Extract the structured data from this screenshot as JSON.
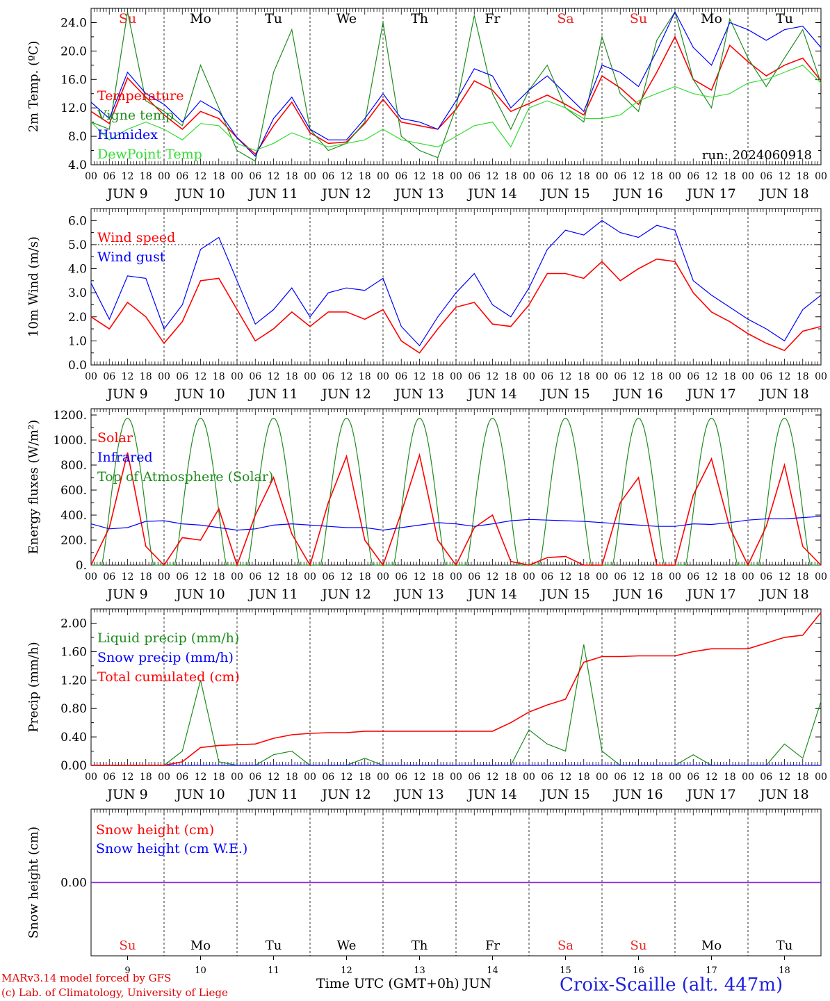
{
  "colors": {
    "red": "#ff0000",
    "green": "#1e8c1e",
    "blue": "#0000ff",
    "lightgreen": "#33dd33",
    "purple": "#8a2be2",
    "sunday": "#ee2222",
    "saturday": "#ee2222"
  },
  "day_names": [
    "Su",
    "Mo",
    "Tu",
    "We",
    "Th",
    "Fr",
    "Sa",
    "Su",
    "Mo",
    "Tu"
  ],
  "weekend_days": [
    0,
    6,
    7
  ],
  "date_labels": [
    "JUN  9",
    "JUN 10",
    "JUN 11",
    "JUN 12",
    "JUN 13",
    "JUN 14",
    "JUN 15",
    "JUN 16",
    "JUN 17",
    "JUN 18"
  ],
  "hour_labels": [
    "00",
    "06",
    "12",
    "18"
  ],
  "bottom_day_numbers": [
    "9",
    "10",
    "11",
    "12",
    "13",
    "14",
    "15",
    "16",
    "17",
    "18"
  ],
  "footer": {
    "model": "MARv3.14 model forced by GFS",
    "lab": "(c) Lab. of Climatology, University of Liege",
    "axis_title": "Time UTC (GMT+0h) JUN",
    "station": "Croix-Scaille (alt. 447m)"
  },
  "chart_data": [
    {
      "id": "temp",
      "type": "line",
      "ylabel": "2m Temp. (ºC)",
      "ylim": [
        4.0,
        26.0
      ],
      "yticks": [
        "4.0",
        "8.0",
        "12.0",
        "16.0",
        "20.0",
        "24.0"
      ],
      "ytick_values": [
        4,
        8,
        12,
        16,
        20,
        24
      ],
      "annotation": "run: 2024060918",
      "x_hours": [
        0,
        6,
        12,
        18,
        24,
        30,
        36,
        42,
        48,
        54,
        60,
        66,
        72,
        78,
        84,
        90,
        96,
        102,
        108,
        114,
        120,
        126,
        132,
        138,
        144,
        150,
        156,
        162,
        168,
        174,
        180,
        186,
        192,
        198,
        204,
        210,
        216,
        222,
        228,
        234,
        240
      ],
      "series": [
        {
          "name": "Temperature",
          "color": "red",
          "values": [
            11.5,
            9.8,
            16.2,
            13.5,
            11.0,
            9.0,
            11.5,
            10.5,
            7.8,
            5.5,
            9.5,
            12.8,
            8.5,
            7.0,
            7.2,
            9.8,
            13.2,
            10.0,
            9.5,
            9.0,
            11.8,
            15.8,
            14.5,
            11.5,
            12.6,
            13.8,
            12.5,
            11.0,
            16.5,
            14.8,
            12.5,
            17.0,
            22.0,
            16.0,
            14.5,
            20.8,
            18.5,
            16.5,
            18.0,
            19.0,
            15.8
          ]
        },
        {
          "name": "Vigne temp",
          "color": "green",
          "values": [
            10.0,
            9.0,
            25.5,
            13.0,
            11.5,
            9.5,
            18.0,
            12.0,
            6.0,
            4.5,
            17.0,
            23.0,
            9.0,
            6.0,
            7.0,
            10.0,
            24.0,
            8.0,
            6.0,
            5.0,
            12.0,
            25.0,
            14.0,
            9.0,
            14.5,
            18.0,
            12.0,
            10.0,
            22.0,
            14.0,
            11.5,
            21.5,
            25.5,
            16.0,
            12.0,
            24.5,
            19.0,
            15.0,
            19.0,
            23.0,
            15.5
          ]
        },
        {
          "name": "Humidex",
          "color": "blue",
          "values": [
            12.8,
            10.5,
            17.0,
            14.0,
            12.5,
            10.0,
            13.0,
            11.5,
            7.8,
            5.2,
            10.5,
            13.5,
            9.0,
            7.5,
            7.5,
            10.5,
            14.0,
            10.5,
            10.0,
            9.0,
            13.0,
            17.5,
            16.5,
            12.0,
            14.5,
            16.5,
            14.0,
            11.5,
            18.0,
            17.0,
            15.0,
            20.0,
            25.5,
            20.5,
            18.0,
            24.0,
            23.0,
            21.5,
            23.0,
            23.5,
            20.5
          ]
        },
        {
          "name": "DewPoint Temp",
          "color": "lightgreen",
          "values": [
            10.0,
            7.5,
            9.0,
            10.0,
            9.0,
            7.5,
            9.8,
            9.5,
            7.0,
            6.0,
            7.0,
            8.5,
            7.5,
            6.5,
            7.0,
            7.5,
            9.0,
            7.5,
            7.0,
            6.5,
            8.0,
            9.5,
            10.0,
            6.5,
            12.0,
            13.0,
            12.0,
            10.5,
            10.5,
            11.0,
            13.0,
            14.0,
            15.0,
            14.0,
            13.5,
            14.0,
            15.5,
            16.0,
            17.0,
            18.0,
            15.5
          ]
        }
      ]
    },
    {
      "id": "wind",
      "type": "line",
      "ylabel": "10m Wind (m/s)",
      "ylim": [
        0.0,
        6.5
      ],
      "yticks": [
        "0.0",
        "1.0",
        "2.0",
        "3.0",
        "4.0",
        "5.0",
        "6.0"
      ],
      "ytick_values": [
        0,
        1,
        2,
        3,
        4,
        5,
        6
      ],
      "reference_line": 5.0,
      "x_hours": [
        0,
        6,
        12,
        18,
        24,
        30,
        36,
        42,
        48,
        54,
        60,
        66,
        72,
        78,
        84,
        90,
        96,
        102,
        108,
        114,
        120,
        126,
        132,
        138,
        144,
        150,
        156,
        162,
        168,
        174,
        180,
        186,
        192,
        198,
        204,
        210,
        216,
        222,
        228,
        234,
        240
      ],
      "series": [
        {
          "name": "Wind speed",
          "color": "red",
          "values": [
            2.0,
            1.5,
            2.6,
            2.0,
            0.9,
            1.8,
            3.5,
            3.6,
            2.3,
            1.0,
            1.5,
            2.2,
            1.6,
            2.2,
            2.2,
            1.9,
            2.3,
            1.0,
            0.5,
            1.5,
            2.4,
            2.6,
            1.7,
            1.6,
            2.5,
            3.8,
            3.8,
            3.6,
            4.3,
            3.5,
            4.0,
            4.4,
            4.3,
            3.0,
            2.2,
            1.8,
            1.3,
            0.9,
            0.6,
            1.4,
            1.6
          ]
        },
        {
          "name": "Wind gust",
          "color": "blue",
          "values": [
            3.4,
            1.9,
            3.7,
            3.6,
            1.5,
            2.5,
            4.8,
            5.3,
            3.5,
            1.7,
            2.3,
            3.2,
            2.0,
            3.0,
            3.2,
            3.1,
            3.6,
            1.6,
            0.8,
            2.0,
            3.0,
            3.8,
            2.5,
            2.0,
            3.2,
            4.8,
            5.6,
            5.4,
            6.0,
            5.5,
            5.3,
            5.8,
            5.6,
            3.5,
            2.9,
            2.4,
            1.9,
            1.5,
            1.0,
            2.3,
            2.9
          ]
        }
      ]
    },
    {
      "id": "energy",
      "type": "line",
      "ylabel": "Energy fluxes (W/m²)",
      "ylim": [
        0,
        1250
      ],
      "yticks": [
        "0.",
        "200.",
        "400.",
        "600.",
        "800.",
        "1000.",
        "1200."
      ],
      "ytick_values": [
        0,
        200,
        400,
        600,
        800,
        1000,
        1200
      ],
      "toa_peak": 1175,
      "x_hours": [
        0,
        6,
        12,
        18,
        24,
        30,
        36,
        42,
        48,
        54,
        60,
        66,
        72,
        78,
        84,
        90,
        96,
        102,
        108,
        114,
        120,
        126,
        132,
        138,
        144,
        150,
        156,
        162,
        168,
        174,
        180,
        186,
        192,
        198,
        204,
        210,
        216,
        222,
        228,
        234,
        240
      ],
      "series": [
        {
          "name": "Solar",
          "color": "red",
          "values": [
            0,
            300,
            900,
            150,
            0,
            220,
            200,
            450,
            0,
            400,
            700,
            250,
            0,
            500,
            870,
            200,
            0,
            420,
            880,
            200,
            0,
            300,
            400,
            30,
            0,
            60,
            70,
            0,
            0,
            500,
            700,
            0,
            0,
            560,
            850,
            300,
            0,
            310,
            800,
            150,
            0
          ]
        },
        {
          "name": "Infrared",
          "color": "blue",
          "values": [
            330,
            290,
            300,
            350,
            355,
            330,
            320,
            300,
            280,
            290,
            320,
            330,
            320,
            310,
            300,
            300,
            280,
            300,
            320,
            340,
            330,
            310,
            330,
            355,
            365,
            360,
            355,
            350,
            340,
            330,
            320,
            310,
            310,
            330,
            325,
            340,
            360,
            370,
            370,
            380,
            390
          ]
        },
        {
          "name": "Top of Atmosphere (Solar)",
          "color": "green",
          "values": []
        }
      ]
    },
    {
      "id": "precip",
      "type": "line",
      "ylabel": "Precip (mm/h)",
      "ylim": [
        0.0,
        2.2
      ],
      "yticks": [
        "0.00",
        "0.40",
        "0.80",
        "1.20",
        "1.60",
        "2.00"
      ],
      "ytick_values": [
        0,
        0.4,
        0.8,
        1.2,
        1.6,
        2.0
      ],
      "x_hours": [
        0,
        6,
        12,
        18,
        24,
        30,
        36,
        42,
        48,
        54,
        60,
        66,
        72,
        78,
        84,
        90,
        96,
        102,
        108,
        114,
        120,
        126,
        132,
        138,
        144,
        150,
        156,
        162,
        168,
        174,
        180,
        186,
        192,
        198,
        204,
        210,
        216,
        222,
        228,
        234,
        240
      ],
      "series": [
        {
          "name": "Liquid precip (mm/h)",
          "color": "green",
          "values": [
            0,
            0,
            0,
            0,
            0,
            0.2,
            1.2,
            0.05,
            0,
            0,
            0.15,
            0.2,
            0,
            0,
            0,
            0.1,
            0,
            0,
            0,
            0,
            0,
            0,
            0,
            0,
            0.5,
            0.3,
            0.2,
            1.7,
            0.2,
            0,
            0,
            0,
            0,
            0.15,
            0,
            0,
            0,
            0,
            0.3,
            0.1,
            0.9
          ]
        },
        {
          "name": "Snow precip (mm/h)",
          "color": "blue",
          "values": [
            0,
            0,
            0,
            0,
            0,
            0,
            0,
            0,
            0,
            0,
            0,
            0,
            0,
            0,
            0,
            0,
            0,
            0,
            0,
            0,
            0,
            0,
            0,
            0,
            0,
            0,
            0,
            0,
            0,
            0,
            0,
            0,
            0,
            0,
            0,
            0,
            0,
            0,
            0,
            0,
            0
          ]
        },
        {
          "name": "Total cumulated (cm)",
          "color": "red",
          "values": [
            0,
            0,
            0,
            0,
            0,
            0.05,
            0.25,
            0.28,
            0.29,
            0.3,
            0.38,
            0.43,
            0.45,
            0.46,
            0.46,
            0.48,
            0.48,
            0.48,
            0.48,
            0.48,
            0.48,
            0.48,
            0.48,
            0.6,
            0.75,
            0.85,
            0.93,
            1.45,
            1.53,
            1.53,
            1.54,
            1.54,
            1.54,
            1.6,
            1.64,
            1.64,
            1.64,
            1.72,
            1.8,
            1.83,
            2.15
          ]
        }
      ]
    },
    {
      "id": "snow",
      "type": "line",
      "ylabel": "Snow height (cm)",
      "ylim": [
        -1.0,
        1.0
      ],
      "yticks": [
        "0.00"
      ],
      "ytick_values": [
        0
      ],
      "x_hours": [
        0,
        240
      ],
      "series": [
        {
          "name": "Snow height (cm)",
          "color": "red",
          "values": [
            0,
            0
          ]
        },
        {
          "name": "Snow height (cm W.E.)",
          "color": "blue",
          "values": [
            0,
            0
          ]
        }
      ]
    }
  ]
}
